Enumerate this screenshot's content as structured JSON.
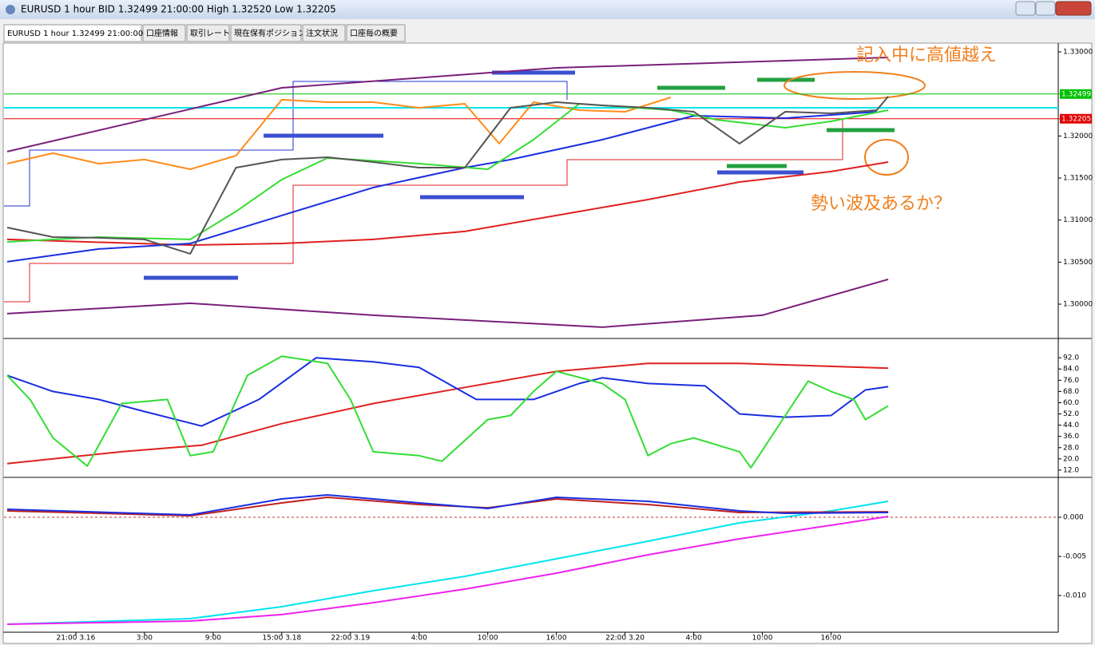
{
  "tabs": [
    "EURUSD 1 hour 1.32499 21:00:00",
    "口座情報",
    "取引レート",
    "現在保有ポジション",
    "注文状況",
    "口座毎の概要"
  ],
  "chart_data": [
    {
      "type": "line",
      "title": "EURUSD 1 hour BID 1.32499 21:00:00 High 1.32520 Low 1.32205",
      "annotations": [
        "記入中に高値越え",
        "勢い波及あるか？"
      ],
      "xlim": [
        0,
        92
      ],
      "ylim": [
        1.29611,
        1.33095
      ],
      "yticks": [
        {
          "value": 1.33,
          "label": "1.33000"
        },
        {
          "value": 1.32,
          "label": "1.32000"
        },
        {
          "value": 1.315,
          "label": "1.31500"
        },
        {
          "value": 1.31,
          "label": "1.31000"
        },
        {
          "value": 1.305,
          "label": "1.30500"
        },
        {
          "value": 1.3,
          "label": "1.30000"
        }
      ],
      "hlines": [
        {
          "value": 1.32336,
          "color": "#00e5ee"
        }
      ],
      "price_lines": [
        {
          "value": 1.32499,
          "color": "#00c000"
        },
        {
          "value": 1.32205,
          "color": "#e00000"
        }
      ],
      "series": [
        {
          "color": "#7a1f7a",
          "x": [
            0,
            24,
            48,
            77
          ],
          "values": [
            1.31814,
            1.32573,
            1.3281,
            1.32934
          ]
        },
        {
          "color": "#7a1f7a",
          "x": [
            0,
            16,
            32,
            52,
            66,
            77
          ],
          "values": [
            1.29887,
            1.30011,
            1.29868,
            1.29726,
            1.29868,
            1.30295
          ]
        },
        {
          "color": "#ff8c1a",
          "x": [
            0,
            4,
            8,
            12,
            16,
            20,
            24,
            28,
            32,
            36,
            40,
            43,
            46,
            50,
            54,
            58
          ],
          "values": [
            1.31671,
            1.31795,
            1.31671,
            1.31719,
            1.31605,
            1.31766,
            1.32431,
            1.32402,
            1.32402,
            1.32336,
            1.32383,
            1.31909,
            1.32402,
            1.32307,
            1.32288,
            1.32459
          ]
        },
        {
          "color": "#e02020",
          "x": [
            0,
            16,
            24,
            32,
            40,
            48,
            56,
            64,
            72,
            77
          ],
          "values": [
            1.3077,
            1.30703,
            1.30722,
            1.3077,
            1.30865,
            1.31055,
            1.31244,
            1.31453,
            1.31577,
            1.3169
          ]
        },
        {
          "color": "#1a2ee0",
          "x": [
            0,
            8,
            16,
            24,
            32,
            40,
            44,
            52,
            60,
            68,
            76
          ],
          "values": [
            1.30504,
            1.30656,
            1.30722,
            1.31055,
            1.31387,
            1.31624,
            1.31719,
            1.31956,
            1.32241,
            1.32212,
            1.32288
          ]
        },
        {
          "color": "#33dd33",
          "x": [
            0,
            8,
            16,
            20,
            24,
            28,
            36,
            42,
            46,
            50,
            58,
            62,
            68,
            72,
            77
          ],
          "values": [
            1.30741,
            1.30798,
            1.3077,
            1.31102,
            1.31482,
            1.31738,
            1.31671,
            1.31605,
            1.31956,
            1.32383,
            1.32307,
            1.32193,
            1.32098,
            1.32174,
            1.32307
          ]
        },
        {
          "color": "#555555",
          "x": [
            0,
            4,
            8,
            12,
            16,
            20,
            24,
            28,
            32,
            36,
            40,
            44,
            48,
            52,
            56,
            60,
            64,
            68,
            72,
            76,
            77
          ],
          "values": [
            1.30912,
            1.30798,
            1.30789,
            1.3077,
            1.30599,
            1.31624,
            1.31719,
            1.31747,
            1.3169,
            1.31624,
            1.31624,
            1.32336,
            1.32402,
            1.32364,
            1.32336,
            1.32288,
            1.31909,
            1.32288,
            1.32269,
            1.32307,
            1.3247
          ]
        }
      ]
    },
    {
      "type": "line",
      "xlim": [
        0,
        92
      ],
      "ylim": [
        7.4,
        104.6
      ],
      "yticks": [
        {
          "value": 92,
          "label": "92.0"
        },
        {
          "value": 84,
          "label": "84.0"
        },
        {
          "value": 76,
          "label": "76.0"
        },
        {
          "value": 68,
          "label": "68.0"
        },
        {
          "value": 60,
          "label": "60.0"
        },
        {
          "value": 52,
          "label": "52.0"
        },
        {
          "value": 44,
          "label": "44.0"
        },
        {
          "value": 36,
          "label": "36.0"
        },
        {
          "value": 28,
          "label": "28.0"
        },
        {
          "value": 20,
          "label": "20.0"
        },
        {
          "value": 12,
          "label": "12.0"
        }
      ],
      "series": [
        {
          "color": "#e02020",
          "x": [
            0,
            10,
            17,
            24,
            32,
            40,
            48,
            56,
            64,
            77
          ],
          "values": [
            16.6,
            25.1,
            29.7,
            45.1,
            59.4,
            70.9,
            82.3,
            88,
            88,
            84.6
          ]
        },
        {
          "color": "#1a2ee0",
          "x": [
            0,
            4,
            8,
            12,
            17,
            22,
            27,
            32,
            36,
            41,
            46,
            50,
            52,
            56,
            61,
            64,
            68,
            72,
            75,
            77
          ],
          "values": [
            79.4,
            68,
            62.3,
            53.7,
            43.4,
            62.3,
            92,
            89.1,
            85.1,
            62.3,
            62.3,
            73.7,
            77.7,
            73.7,
            72,
            52,
            49.7,
            50.9,
            69.1,
            71.4
          ]
        },
        {
          "color": "#33dd33",
          "x": [
            0,
            2,
            4,
            7,
            10,
            14,
            16,
            18,
            21,
            24,
            28,
            30,
            32,
            36,
            38,
            42,
            44,
            46,
            48,
            52,
            54,
            56,
            58,
            60,
            64,
            65,
            68,
            70,
            72,
            74,
            75,
            77
          ],
          "values": [
            79.4,
            62.3,
            34.9,
            14.9,
            59.4,
            62.3,
            22.3,
            25.1,
            79.4,
            93.1,
            88,
            62.3,
            25.1,
            22.3,
            18.3,
            48,
            50.9,
            68,
            82.3,
            73.7,
            62.3,
            22.3,
            30.9,
            34.9,
            25.1,
            13.7,
            50.9,
            75.4,
            68,
            62.3,
            48,
            57.7
          ]
        }
      ]
    },
    {
      "type": "line",
      "xlim": [
        0,
        92
      ],
      "ylim": [
        -0.01469,
        0.0049
      ],
      "yticks": [
        {
          "value": 0,
          "label": "0.000"
        },
        {
          "value": -0.005,
          "label": "-0.005"
        },
        {
          "value": -0.01,
          "label": "-0.010"
        }
      ],
      "xticks": [
        {
          "value": 6,
          "label": "21:00  3.16"
        },
        {
          "value": 12,
          "label": "3:00"
        },
        {
          "value": 18,
          "label": "9:00"
        },
        {
          "value": 24,
          "label": "15:00 3.18"
        },
        {
          "value": 30,
          "label": "22:00  3.19"
        },
        {
          "value": 36,
          "label": "4:00"
        },
        {
          "value": 42,
          "label": "10:00"
        },
        {
          "value": 48,
          "label": "16:00"
        },
        {
          "value": 54,
          "label": "22:00  3.20"
        },
        {
          "value": 60,
          "label": "4:00"
        },
        {
          "value": 66,
          "label": "10:00"
        },
        {
          "value": 72,
          "label": "16:00"
        }
      ],
      "series": [
        {
          "color": "#00e5ee",
          "x": [
            0,
            16,
            24,
            32,
            40,
            48,
            56,
            64,
            72,
            77
          ],
          "values": [
            -0.01367,
            -0.01296,
            -0.01142,
            -0.00938,
            -0.00755,
            -0.0053,
            -0.00306,
            -0.00071,
            0.00082,
            0.00204
          ]
        },
        {
          "color": "#ee22ee",
          "x": [
            0,
            16,
            24,
            32,
            40,
            48,
            56,
            64,
            72,
            77
          ],
          "values": [
            -0.01367,
            -0.01326,
            -0.01244,
            -0.01091,
            -0.00918,
            -0.00714,
            -0.00479,
            -0.00275,
            -0.00102,
            0.0001
          ]
        },
        {
          "color": "#c02020",
          "x": [
            0,
            16,
            24,
            28,
            36,
            42,
            48,
            56,
            64,
            77
          ],
          "values": [
            0.00082,
            0.0002,
            0.00184,
            0.00255,
            0.00163,
            0.00122,
            0.00235,
            0.00163,
            0.00061,
            0.00071
          ]
        },
        {
          "color": "#1a2ee0",
          "x": [
            0,
            16,
            24,
            28,
            36,
            42,
            48,
            56,
            64,
            68,
            77
          ],
          "values": [
            0.00102,
            0.00031,
            0.00235,
            0.00286,
            0.00184,
            0.00112,
            0.00255,
            0.00204,
            0.00082,
            0.00051,
            0.00061
          ]
        }
      ]
    }
  ]
}
